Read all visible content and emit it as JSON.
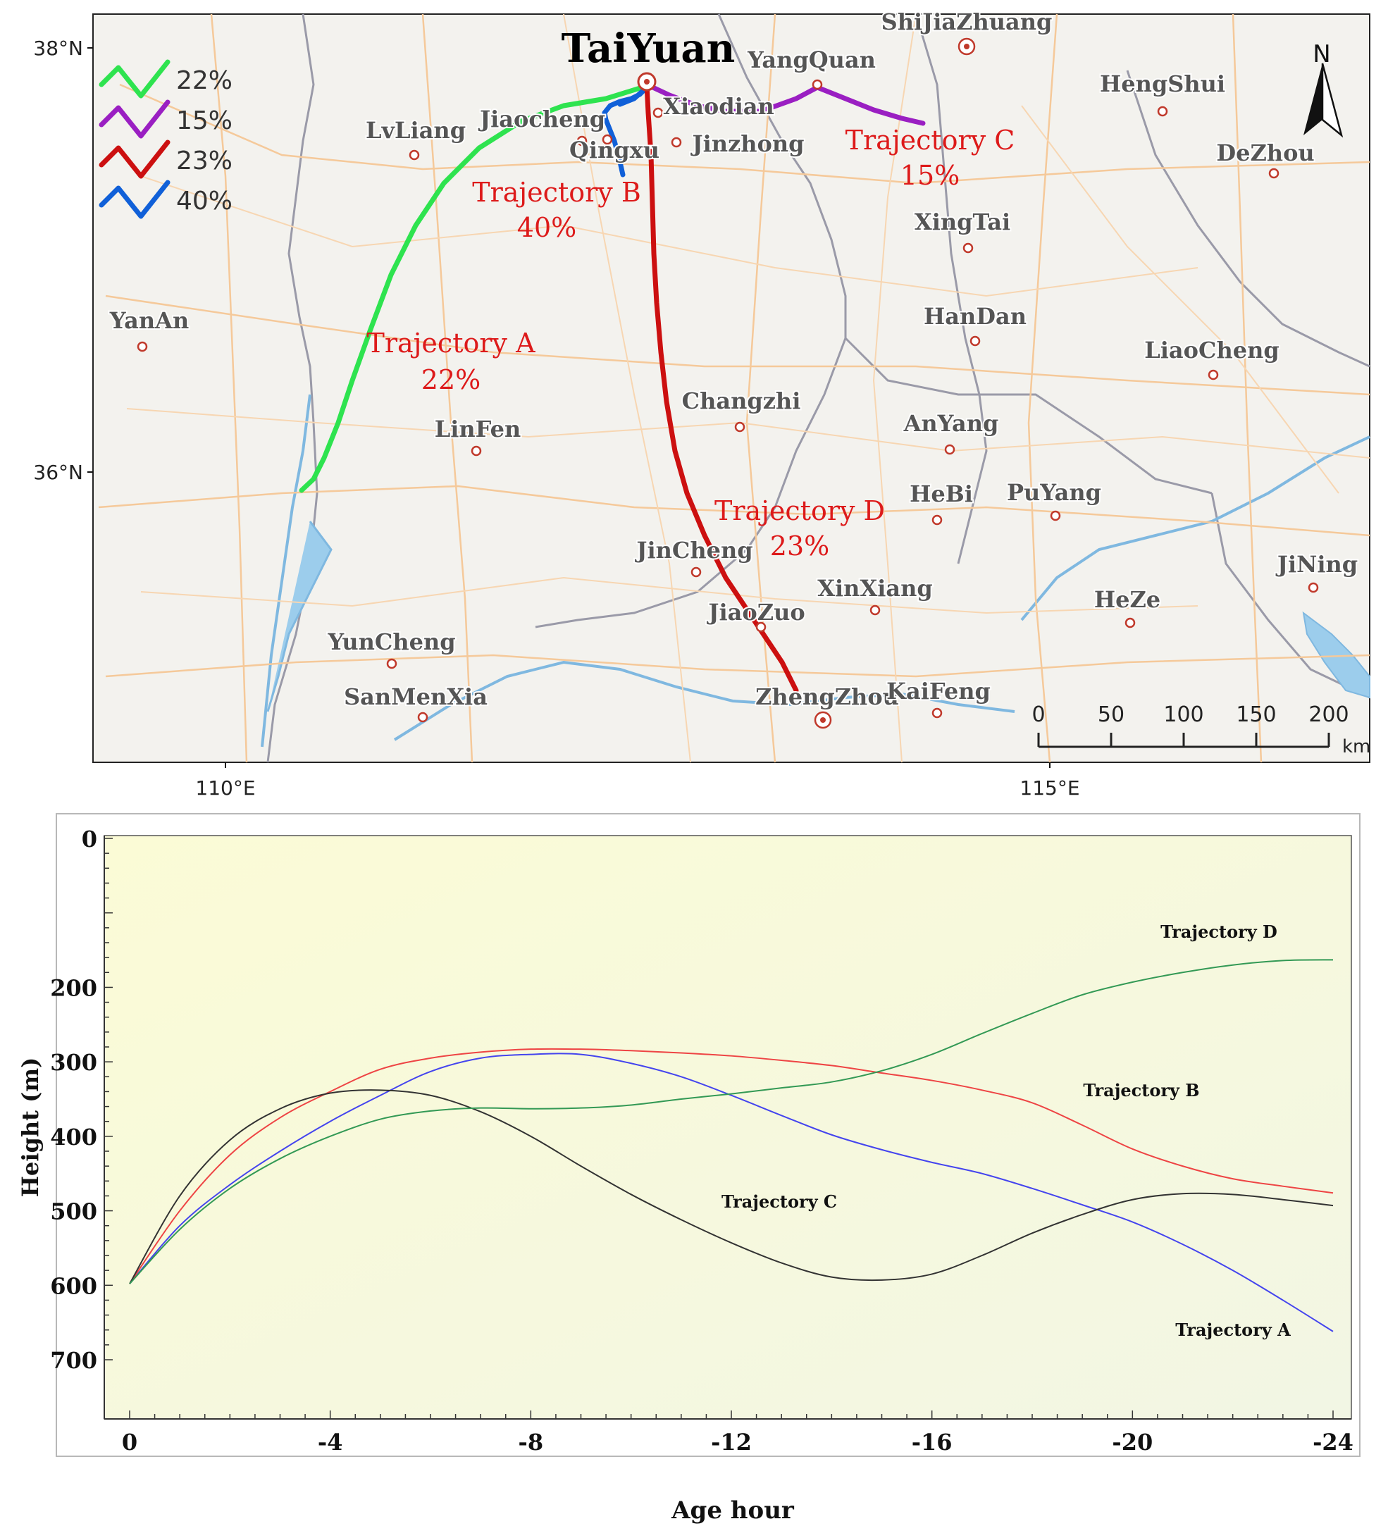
{
  "map": {
    "title_city": "TaiYuan",
    "north_label": "N",
    "lat_labels": [
      {
        "id": "lat-38",
        "text": "38°N"
      },
      {
        "id": "lat-36",
        "text": "36°N"
      }
    ],
    "lon_labels": [
      {
        "id": "lon-110",
        "text": "110°E"
      },
      {
        "id": "lon-115",
        "text": "115°E"
      }
    ],
    "cities": [
      {
        "name": "ShiJiaZhuang",
        "big": true
      },
      {
        "name": "YangQuan"
      },
      {
        "name": "HengShui"
      },
      {
        "name": "LvLiang"
      },
      {
        "name": "Jiaocheng"
      },
      {
        "name": "Xiaodian"
      },
      {
        "name": "Qingxu"
      },
      {
        "name": "Jinzhong"
      },
      {
        "name": "DeZhou"
      },
      {
        "name": "XingTai"
      },
      {
        "name": "YanAn"
      },
      {
        "name": "HanDan"
      },
      {
        "name": "LiaoCheng"
      },
      {
        "name": "Changzhi"
      },
      {
        "name": "LinFen"
      },
      {
        "name": "AnYang"
      },
      {
        "name": "HeBi"
      },
      {
        "name": "PuYang"
      },
      {
        "name": "JinCheng"
      },
      {
        "name": "JiNing"
      },
      {
        "name": "XinXiang"
      },
      {
        "name": "HeZe"
      },
      {
        "name": "JiaoZuo"
      },
      {
        "name": "YunCheng"
      },
      {
        "name": "SanMenXia"
      },
      {
        "name": "ZhengZhou",
        "big": true
      },
      {
        "name": "KaiFeng"
      }
    ],
    "legend": [
      {
        "color": "#2ee34f",
        "label": "22%"
      },
      {
        "color": "#9a1fc2",
        "label": "15%"
      },
      {
        "color": "#cc1010",
        "label": "23%"
      },
      {
        "color": "#1060d8",
        "label": "40%"
      }
    ],
    "trajectories": [
      {
        "id": "A",
        "name": "Trajectory A",
        "pct": "22%",
        "color": "#2ee34f"
      },
      {
        "id": "B",
        "name": "Trajectory B",
        "pct": "40%",
        "color": "#1060d8"
      },
      {
        "id": "C",
        "name": "Trajectory C",
        "pct": "15%",
        "color": "#9a1fc2"
      },
      {
        "id": "D",
        "name": "Trajectory D",
        "pct": "23%",
        "color": "#cc1010"
      }
    ],
    "scale": {
      "ticks": [
        "0",
        "50",
        "100",
        "150",
        "200"
      ],
      "unit": "km"
    }
  },
  "chart_data": {
    "type": "line",
    "xlabel": "Age hour",
    "ylabel": "Height (m)",
    "xlim": [
      0,
      -24
    ],
    "ylim": [
      0,
      700
    ],
    "y_inverted": true,
    "x_ticks": [
      0,
      -4,
      -8,
      -12,
      -16,
      -20,
      -24
    ],
    "y_ticks": [
      0,
      200,
      300,
      400,
      500,
      600,
      700
    ],
    "grid": false,
    "series": [
      {
        "name": "Trajectory A",
        "color": "#4444ee",
        "x": [
          0,
          -1,
          -2,
          -3,
          -4,
          -5,
          -6,
          -7,
          -8,
          -9,
          -10,
          -11,
          -12,
          -13,
          -14,
          -15,
          -16,
          -17,
          -18,
          -19,
          -20,
          -21,
          -22,
          -23,
          -24
        ],
        "y": [
          598,
          520,
          465,
          420,
          380,
          345,
          313,
          295,
          290,
          290,
          302,
          320,
          345,
          372,
          398,
          418,
          435,
          450,
          470,
          492,
          515,
          545,
          580,
          620,
          662
        ]
      },
      {
        "name": "Trajectory B",
        "color": "#ee4444",
        "x": [
          0,
          -1,
          -2,
          -3,
          -4,
          -5,
          -6,
          -7,
          -8,
          -9,
          -10,
          -11,
          -12,
          -13,
          -14,
          -15,
          -16,
          -17,
          -18,
          -19,
          -20,
          -21,
          -22,
          -23,
          -24
        ],
        "y": [
          598,
          500,
          425,
          375,
          340,
          310,
          295,
          287,
          283,
          283,
          285,
          288,
          292,
          298,
          305,
          315,
          325,
          338,
          355,
          385,
          417,
          440,
          457,
          467,
          476
        ]
      },
      {
        "name": "Trajectory C",
        "color": "#333333",
        "x": [
          0,
          -1,
          -2,
          -3,
          -4,
          -5,
          -6,
          -7,
          -8,
          -9,
          -10,
          -11,
          -12,
          -13,
          -14,
          -15,
          -16,
          -17,
          -18,
          -19,
          -20,
          -21,
          -22,
          -23,
          -24
        ],
        "y": [
          598,
          480,
          405,
          363,
          342,
          338,
          345,
          367,
          400,
          440,
          478,
          512,
          543,
          570,
          589,
          593,
          585,
          560,
          530,
          505,
          485,
          477,
          478,
          485,
          493
        ]
      },
      {
        "name": "Trajectory D",
        "color": "#339955",
        "x": [
          0,
          -1,
          -2,
          -3,
          -4,
          -5,
          -6,
          -7,
          -8,
          -9,
          -10,
          -11,
          -12,
          -13,
          -14,
          -15,
          -16,
          -17,
          -18,
          -19,
          -20,
          -21,
          -22,
          -23,
          -24
        ],
        "y": [
          598,
          525,
          470,
          430,
          400,
          377,
          366,
          362,
          363,
          362,
          358,
          350,
          343,
          335,
          327,
          312,
          290,
          262,
          235,
          210,
          193,
          180,
          170,
          164,
          163
        ]
      }
    ],
    "annotations": [
      {
        "series": "Trajectory D",
        "text": "Trajectory D"
      },
      {
        "series": "Trajectory B",
        "text": "Trajectory B"
      },
      {
        "series": "Trajectory C",
        "text": "Trajectory C"
      },
      {
        "series": "Trajectory A",
        "text": "Trajectory A"
      }
    ]
  }
}
